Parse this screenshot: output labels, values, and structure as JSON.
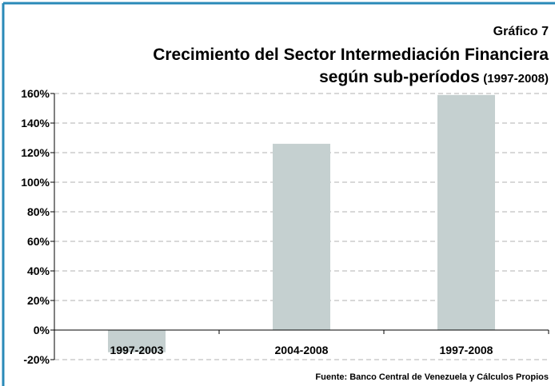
{
  "chart_data": {
    "type": "bar",
    "label": "Gráfico 7",
    "title": "Crecimiento del Sector Intermediación Financiera",
    "subtitle": "según sub-períodos",
    "subtitle_period": "(1997-2008)",
    "source": "Fuente: Banco Central de Venezuela y Cálculos Propios",
    "categories": [
      "1997-2003",
      "2004-2008",
      "1997-2008"
    ],
    "values": [
      -15,
      126,
      159
    ],
    "color": "#c5d0d0",
    "ylim": [
      -20,
      160
    ],
    "yticks": [
      {
        "value": -20,
        "label": "-20%"
      },
      {
        "value": 0,
        "label": "0%"
      },
      {
        "value": 20,
        "label": "20%"
      },
      {
        "value": 40,
        "label": "40%"
      },
      {
        "value": 60,
        "label": "60%"
      },
      {
        "value": 80,
        "label": "80%"
      },
      {
        "value": 100,
        "label": "100%"
      },
      {
        "value": 120,
        "label": "120%"
      },
      {
        "value": 140,
        "label": "140%"
      },
      {
        "value": 160,
        "label": "160%"
      }
    ],
    "grid": true
  }
}
